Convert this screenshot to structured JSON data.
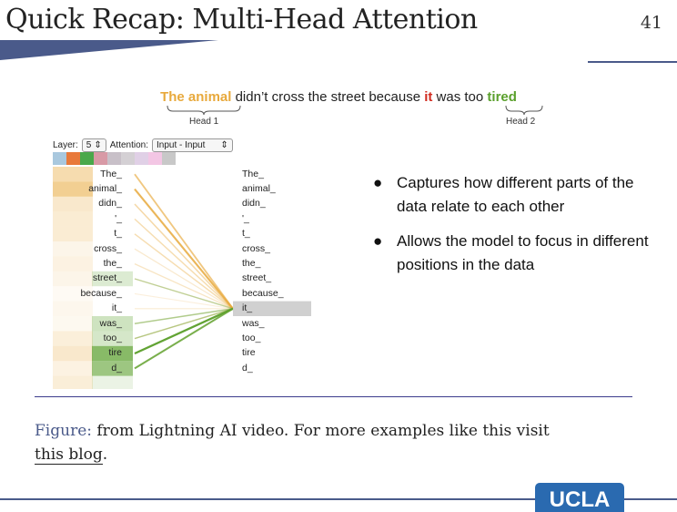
{
  "slide": {
    "title": "Quick Recap: Multi-Head Attention",
    "number": "41"
  },
  "sentence": {
    "part_head1": "The animal",
    "part_mid1": " didn’t cross the street because ",
    "part_it": "it",
    "part_mid2": " was too ",
    "part_head2": "tired",
    "head1_label": "Head 1",
    "head2_label": "Head 2"
  },
  "controls": {
    "layer_label": "Layer:",
    "layer_value": "5",
    "attention_label": "Attention:",
    "attention_value": "Input - Input"
  },
  "tokens": [
    "The_",
    "animal_",
    "didn_",
    "'_",
    "t_",
    "cross_",
    "the_",
    "street_",
    "because_",
    "it_",
    "was_",
    "too_",
    "tire",
    "d_"
  ],
  "right_tokens": [
    "The_",
    "animal_",
    "didn_",
    "'_",
    "t_",
    "cross_",
    "the_",
    "street_",
    "because_",
    "it_",
    "was_",
    "too_",
    "tire",
    "d_"
  ],
  "focus_index": 9,
  "colors": {
    "head1": "#e8a93c",
    "head2": "#5aa02c",
    "it": "#d12b1f",
    "swatches": [
      "#a9c8de",
      "#e8793a",
      "#4aa84a",
      "#d89aa6",
      "#c8c0c8",
      "#d4d0d4",
      "#e0d0e6",
      "#f3c6e4",
      "#c8c8c8"
    ]
  },
  "attention": {
    "head1_weights": [
      0.55,
      0.75,
      0.35,
      0.3,
      0.3,
      0.15,
      0.2,
      0.15,
      0.08,
      0.12,
      0.1,
      0.25,
      0.35,
      0.2
    ],
    "head2_weights": [
      0.0,
      0.0,
      0.0,
      0.0,
      0.0,
      0.0,
      0.0,
      0.25,
      0.0,
      0.0,
      0.35,
      0.3,
      0.85,
      0.7
    ]
  },
  "bullets": [
    "Captures how different parts of the data relate to each other",
    "Allows the model to focus in different positions in the data"
  ],
  "caption": {
    "label": "Figure:",
    "text": " from Lightning AI video. For more examples like this visit",
    "link": "this blog",
    "end": "."
  },
  "logo": "UCLA"
}
